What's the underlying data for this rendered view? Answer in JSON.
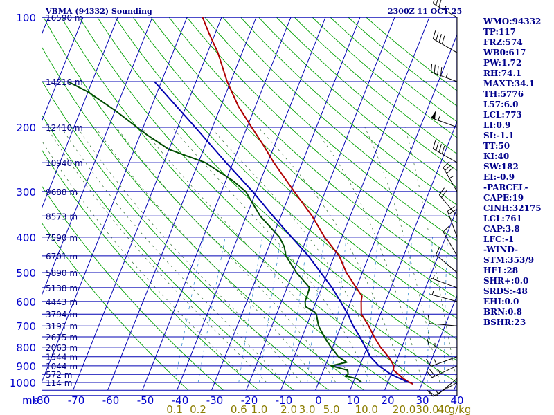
{
  "chart_data": {
    "type": "skew-t",
    "title_left": "VBMA (94332) Sounding",
    "title_right": "2300Z 11 OCT 25",
    "pressure_ticks": [
      100,
      200,
      300,
      400,
      500,
      600,
      700,
      800,
      900,
      1000
    ],
    "pressure_unit": "mb",
    "temp_ticks": [
      "-80",
      "-70",
      "-60",
      "-50",
      "-40",
      "-30",
      "-20",
      "-10",
      "0",
      "10",
      "20",
      "30",
      "40"
    ],
    "xlim_celsius_at_1000mb": [
      -80,
      40
    ],
    "mixing_ratio_ticks": [
      {
        "label": "0.1",
        "value": 0.1
      },
      {
        "label": "0.2",
        "value": 0.2
      },
      {
        "label": "0.6",
        "value": 0.6
      },
      {
        "label": "1.0",
        "value": 1.0
      },
      {
        "label": "2.0",
        "value": 2.0
      },
      {
        "label": "3.0",
        "value": 3.0
      },
      {
        "label": "5.0",
        "value": 5.0
      },
      {
        "label": "10.0",
        "value": 10.0
      },
      {
        "label": "20.0",
        "value": 20.0
      },
      {
        "label": "30.0",
        "value": 30.0
      },
      {
        "label": "40",
        "value": 40.0
      }
    ],
    "mixing_ratio_unit": "g/kg",
    "height_labels": [
      {
        "label": "16590 m",
        "p": 100
      },
      {
        "label": "14210 m",
        "p": 150
      },
      {
        "label": "12410 m",
        "p": 200
      },
      {
        "label": "10940 m",
        "p": 250
      },
      {
        "label": "9688 m",
        "p": 300
      },
      {
        "label": "8573 m",
        "p": 350
      },
      {
        "label": "7590 m",
        "p": 400
      },
      {
        "label": "6701 m",
        "p": 450
      },
      {
        "label": "5890 m",
        "p": 500
      },
      {
        "label": "5138 m",
        "p": 550
      },
      {
        "label": "4443 m",
        "p": 600
      },
      {
        "label": "3794 m",
        "p": 650
      },
      {
        "label": "3191 m",
        "p": 700
      },
      {
        "label": "2615 m",
        "p": 750
      },
      {
        "label": "2063 m",
        "p": 800
      },
      {
        "label": "1544 m",
        "p": 850
      },
      {
        "label": "1044 m",
        "p": 900
      },
      {
        "label": "572 m",
        "p": 950
      },
      {
        "label": "114 m",
        "p": 1000
      }
    ],
    "series": [
      {
        "name": "temperature",
        "color": "#b00000",
        "points": [
          [
            1010,
            27.5
          ],
          [
            1000,
            26.3
          ],
          [
            975,
            24.0
          ],
          [
            950,
            22.2
          ],
          [
            925,
            20.2
          ],
          [
            900,
            19.8
          ],
          [
            875,
            18.6
          ],
          [
            850,
            17.2
          ],
          [
            800,
            13.8
          ],
          [
            750,
            10.8
          ],
          [
            700,
            8.0
          ],
          [
            650,
            4.5
          ],
          [
            600,
            3.0
          ],
          [
            580,
            2.6
          ],
          [
            550,
            0.0
          ],
          [
            500,
            -4.6
          ],
          [
            450,
            -8.6
          ],
          [
            400,
            -15.0
          ],
          [
            350,
            -21.0
          ],
          [
            300,
            -29.0
          ],
          [
            250,
            -38.2
          ],
          [
            225,
            -43.0
          ],
          [
            200,
            -48.7
          ],
          [
            175,
            -55.0
          ],
          [
            150,
            -61.0
          ],
          [
            125,
            -67.0
          ],
          [
            110,
            -72.0
          ],
          [
            100,
            -75.5
          ]
        ]
      },
      {
        "name": "dewpoint",
        "color": "#004d00",
        "points": [
          [
            1000,
            12.5
          ],
          [
            975,
            10.5
          ],
          [
            960,
            7.0
          ],
          [
            950,
            7.6
          ],
          [
            925,
            7.0
          ],
          [
            900,
            1.7
          ],
          [
            880,
            5.8
          ],
          [
            850,
            2.8
          ],
          [
            800,
            -0.5
          ],
          [
            760,
            -3.0
          ],
          [
            700,
            -6.5
          ],
          [
            650,
            -8.5
          ],
          [
            640,
            -9.4
          ],
          [
            620,
            -12.5
          ],
          [
            600,
            -13.2
          ],
          [
            575,
            -13.3
          ],
          [
            550,
            -13.5
          ],
          [
            500,
            -19.0
          ],
          [
            450,
            -24.0
          ],
          [
            425,
            -25.5
          ],
          [
            400,
            -28.0
          ],
          [
            350,
            -36.0
          ],
          [
            300,
            -43.0
          ],
          [
            280,
            -48.0
          ],
          [
            250,
            -58.0
          ],
          [
            230,
            -70.0
          ],
          [
            210,
            -78.0
          ],
          [
            180,
            -90.0
          ],
          [
            160,
            -100.0
          ],
          [
            150,
            -107.0
          ]
        ]
      },
      {
        "name": "parcel",
        "color": "#0000b0",
        "points": [
          [
            1000,
            26.0
          ],
          [
            950,
            20.0
          ],
          [
            900,
            15.5
          ],
          [
            850,
            12.0
          ],
          [
            800,
            9.4
          ],
          [
            750,
            6.7
          ],
          [
            700,
            3.5
          ],
          [
            650,
            0.6
          ],
          [
            600,
            -3.0
          ],
          [
            550,
            -7.0
          ],
          [
            500,
            -12.0
          ],
          [
            450,
            -17.5
          ],
          [
            400,
            -24.5
          ],
          [
            350,
            -32.3
          ],
          [
            300,
            -41.0
          ],
          [
            250,
            -52.0
          ],
          [
            200,
            -65.0
          ],
          [
            150,
            -82.0
          ]
        ]
      }
    ],
    "wind_barbs": [
      {
        "p": 1000,
        "dir": 240,
        "spd": 15
      },
      {
        "p": 975,
        "dir": 230,
        "spd": 10
      },
      {
        "p": 900,
        "dir": 245,
        "spd": 25
      },
      {
        "p": 850,
        "dir": 250,
        "spd": 15
      },
      {
        "p": 800,
        "dir": 270,
        "spd": 15
      },
      {
        "p": 700,
        "dir": 275,
        "spd": 10
      },
      {
        "p": 600,
        "dir": 285,
        "spd": 5
      },
      {
        "p": 550,
        "dir": 290,
        "spd": 5
      },
      {
        "p": 500,
        "dir": 310,
        "spd": 10
      },
      {
        "p": 450,
        "dir": 330,
        "spd": 10
      },
      {
        "p": 400,
        "dir": 340,
        "spd": 20
      },
      {
        "p": 350,
        "dir": 320,
        "spd": 20
      },
      {
        "p": 300,
        "dir": 330,
        "spd": 35
      },
      {
        "p": 250,
        "dir": 300,
        "spd": 40
      },
      {
        "p": 200,
        "dir": 290,
        "spd": 55
      },
      {
        "p": 150,
        "dir": 290,
        "spd": 45
      },
      {
        "p": 125,
        "dir": 300,
        "spd": 40
      },
      {
        "p": 100,
        "dir": 300,
        "spd": 35
      }
    ]
  },
  "stats": [
    "WMO:94332",
    "TP:117",
    "FRZ:574",
    "WB0:617",
    "PW:1.72",
    "RH:74.1",
    "MAXT:34.1",
    "TH:5776",
    "L57:6.0",
    "LCL:773",
    "LI:0.9",
    "SI:-1.1",
    "TT:50",
    "KI:40",
    "SW:182",
    "EI:-0.9",
    "-PARCEL-",
    "CAPE:19",
    "CINH:32175",
    "LCL:761",
    "CAP:3.8",
    "LFC:-1",
    "-WIND-",
    "STM:353/9",
    "HEL:28",
    "SHR+:0.0",
    "SRDS:-48",
    "EHI:0.0",
    "BRN:0.8",
    "BSHR:23"
  ],
  "colors": {
    "grid": "#0000b4",
    "dry_adiabat": "#00a000",
    "moist_adiabat": "#2e6b2e",
    "mixing_ratio": "#3a8fd0",
    "temperature": "#b00000",
    "dewpoint": "#004d00",
    "parcel": "#0000b0"
  }
}
